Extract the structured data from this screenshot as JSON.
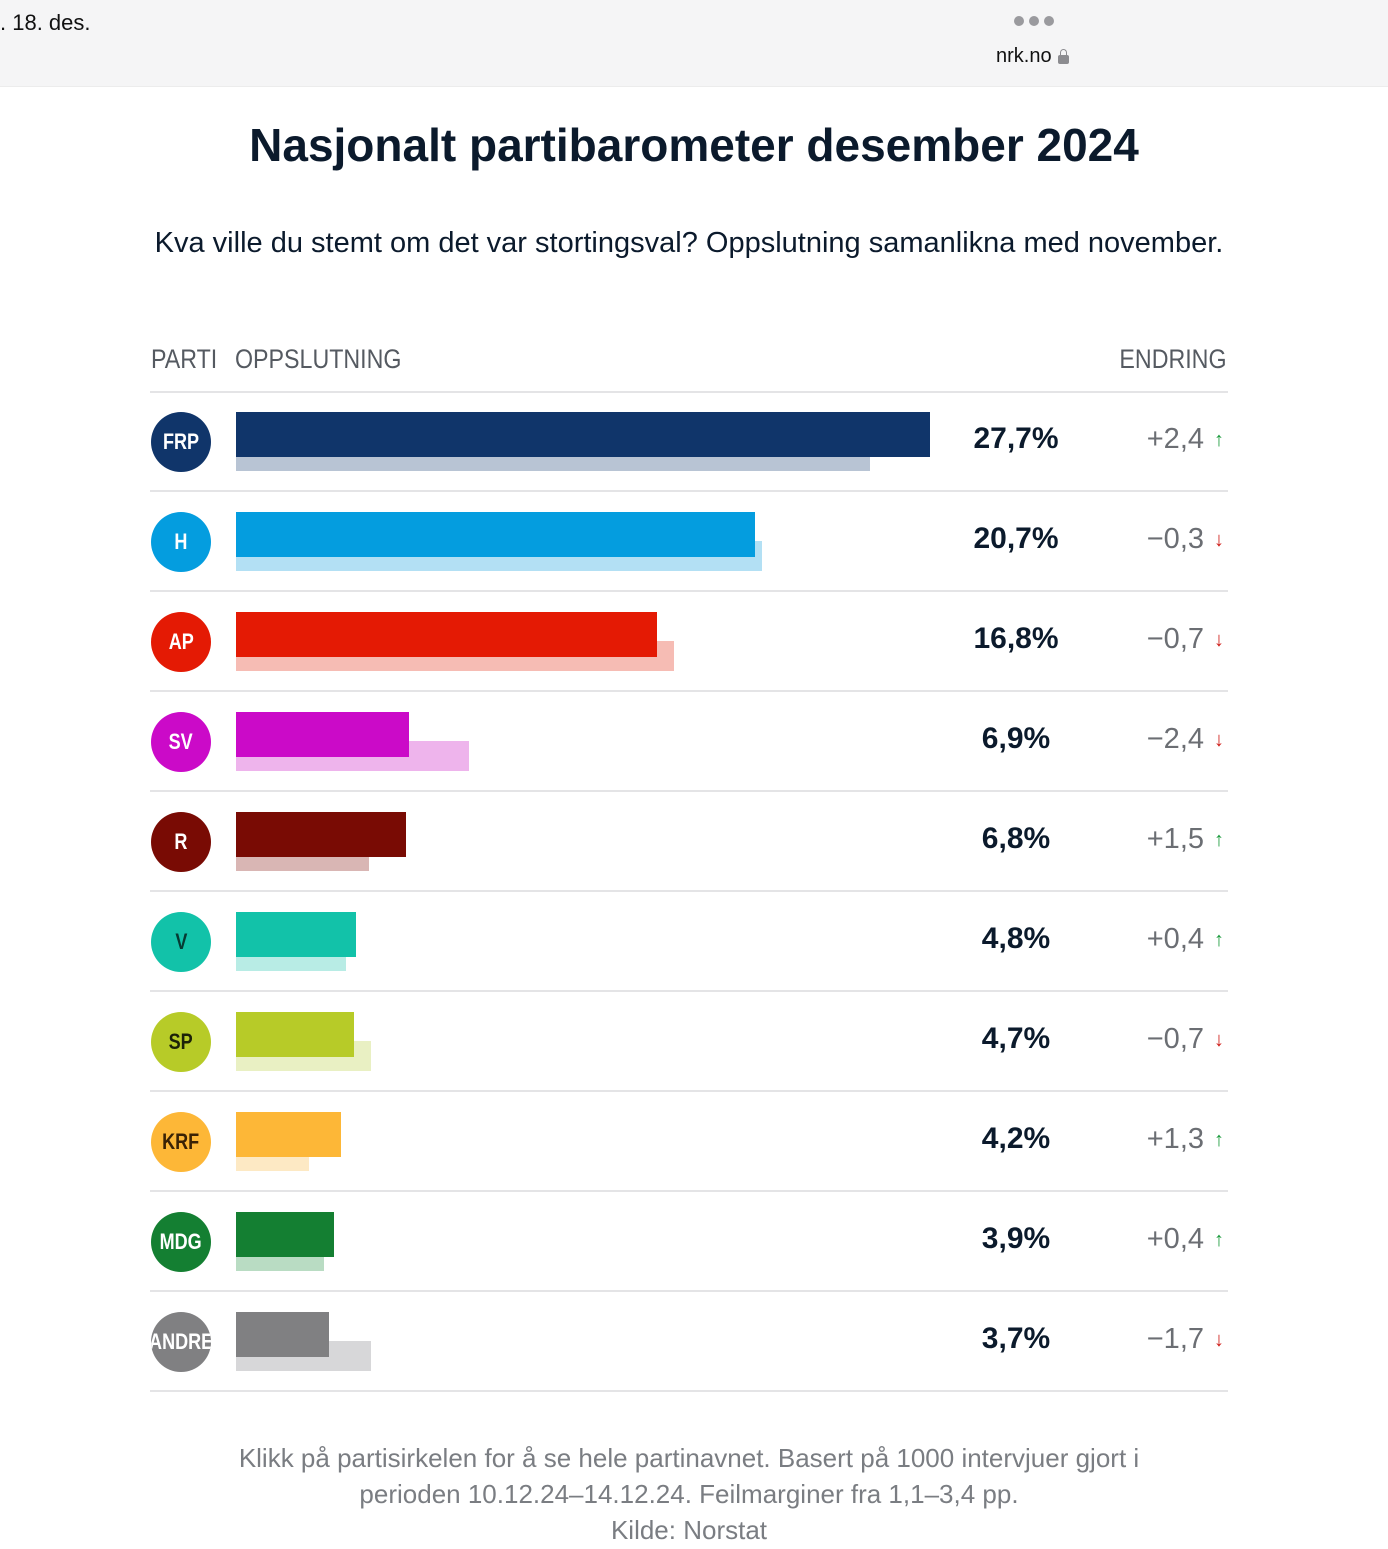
{
  "browser": {
    "date": ". 18. des.",
    "url": "nrk.no",
    "more_icon": "ellipsis-icon",
    "lock_icon": "lock-icon"
  },
  "title": "Nasjonalt partibarometer desember 2024",
  "subtitle": "Kva ville du stemt om det var stortingsval? Oppslutning samanlikna med november.",
  "headers": {
    "party": "PARTI",
    "support": "OPPSLUTNING",
    "change": "ENDRING"
  },
  "footer": {
    "line1": "Klikk på partisirkelen for å se hele partinavnet. Basert på 1000 intervjuer gjort i",
    "line2": "perioden 10.12.24–14.12.24. Feilmarginer fra 1,1–3,4 pp.",
    "line3": "Kilde: Norstat"
  },
  "colors": {
    "up": "#1a9a3c",
    "down": "#d0201b"
  },
  "chart_data": {
    "type": "bar",
    "orientation": "horizontal",
    "title": "Nasjonalt partibarometer desember 2024",
    "subtitle": "Kva ville du stemt om det var stortingsval? Oppslutning samanlikna med november.",
    "xlabel": "OPPSLUTNING",
    "ylabel": "PARTI",
    "unit": "%",
    "xlim": [
      0,
      27.7
    ],
    "grid": false,
    "categories": [
      "FRP",
      "H",
      "AP",
      "SV",
      "R",
      "V",
      "SP",
      "KRF",
      "MDG",
      "ANDRE"
    ],
    "series": [
      {
        "name": "desember 2024",
        "values": [
          27.7,
          20.7,
          16.8,
          6.9,
          6.8,
          4.8,
          4.7,
          4.2,
          3.9,
          3.7
        ]
      },
      {
        "name": "november 2024",
        "values": [
          25.3,
          21.0,
          17.5,
          9.3,
          5.3,
          4.4,
          5.4,
          2.9,
          3.5,
          5.4
        ]
      }
    ],
    "rows": [
      {
        "party": "FRP",
        "value": 27.7,
        "label": "27,7%",
        "change": "+2,4",
        "dir": "up",
        "color": "#10356a",
        "prev_color": "#b8c4d4",
        "text_color": "#ffffff"
      },
      {
        "party": "H",
        "value": 20.7,
        "label": "20,7%",
        "change": "−0,3",
        "dir": "down",
        "color": "#049ddf",
        "prev_color": "#b3e0f4",
        "text_color": "#ffffff"
      },
      {
        "party": "AP",
        "value": 16.8,
        "label": "16,8%",
        "change": "−0,7",
        "dir": "down",
        "color": "#e41a04",
        "prev_color": "#f6bcb4",
        "text_color": "#ffffff"
      },
      {
        "party": "SV",
        "value": 6.9,
        "label": "6,9%",
        "change": "−2,4",
        "dir": "down",
        "color": "#cb0ac8",
        "prev_color": "#eeb4ec",
        "text_color": "#ffffff"
      },
      {
        "party": "R",
        "value": 6.8,
        "label": "6,8%",
        "change": "+1,5",
        "dir": "up",
        "color": "#790b04",
        "prev_color": "#d9b6b4",
        "text_color": "#ffffff"
      },
      {
        "party": "V",
        "value": 4.8,
        "label": "4,8%",
        "change": "+0,4",
        "dir": "up",
        "color": "#12c2a9",
        "prev_color": "#b8ece5",
        "text_color": "#063a33"
      },
      {
        "party": "SP",
        "value": 4.7,
        "label": "4,7%",
        "change": "−0,7",
        "dir": "down",
        "color": "#b7cb28",
        "prev_color": "#e9f0c3",
        "text_color": "#1c2208"
      },
      {
        "party": "KRF",
        "value": 4.2,
        "label": "4,2%",
        "change": "+1,3",
        "dir": "up",
        "color": "#fdb737",
        "prev_color": "#fde9c4",
        "text_color": "#3a2205"
      },
      {
        "party": "MDG",
        "value": 3.9,
        "label": "3,9%",
        "change": "+0,4",
        "dir": "up",
        "color": "#147f32",
        "prev_color": "#b9dcc3",
        "text_color": "#ffffff"
      },
      {
        "party": "ANDRE",
        "value": 3.7,
        "label": "3,7%",
        "change": "−1,7",
        "dir": "down",
        "color": "#808082",
        "prev_color": "#d7d7d9",
        "text_color": "#ffffff"
      }
    ]
  }
}
